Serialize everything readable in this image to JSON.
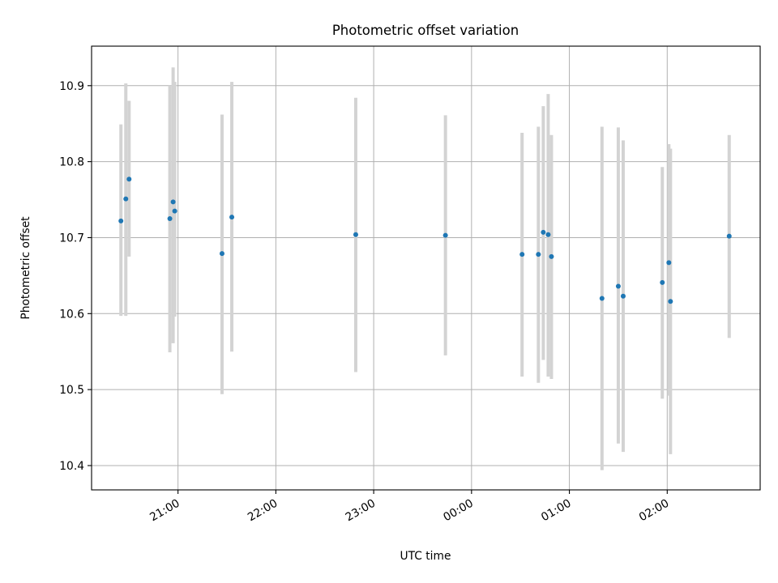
{
  "chart_data": {
    "type": "scatter",
    "title": "Photometric offset variation",
    "xlabel": "UTC time",
    "ylabel": "Photometric offset",
    "xlim": [
      "20:07",
      "02:57"
    ],
    "ylim": [
      10.368,
      10.952
    ],
    "grid": true,
    "x_ticks": [
      "21:00",
      "22:00",
      "23:00",
      "00:00",
      "01:00",
      "02:00"
    ],
    "y_ticks": [
      10.4,
      10.5,
      10.6,
      10.7,
      10.8,
      10.9
    ],
    "marker_color": "#1f77b4",
    "errorbar_color": "#d3d3d3",
    "series": [
      {
        "x": [
          "20:25",
          "20:28",
          "20:30",
          "20:55",
          "20:57",
          "20:58",
          "21:27",
          "21:33",
          "22:49",
          "23:44",
          "00:31",
          "00:41",
          "00:44",
          "00:47",
          "00:49",
          "01:20",
          "01:30",
          "01:33",
          "01:57",
          "02:01",
          "02:02",
          "02:38"
        ],
        "y": [
          10.722,
          10.751,
          10.777,
          10.725,
          10.747,
          10.735,
          10.679,
          10.727,
          10.704,
          10.703,
          10.678,
          10.678,
          10.707,
          10.704,
          10.675,
          10.62,
          10.636,
          10.623,
          10.641,
          10.667,
          10.616,
          10.702
        ],
        "y_low": [
          10.597,
          10.597,
          10.675,
          10.549,
          10.561,
          10.596,
          10.494,
          10.55,
          10.523,
          10.545,
          10.517,
          10.509,
          10.539,
          10.517,
          10.514,
          10.394,
          10.429,
          10.418,
          10.488,
          10.492,
          10.415,
          10.568
        ],
        "y_high": [
          10.849,
          10.903,
          10.88,
          10.9,
          10.924,
          10.905,
          10.862,
          10.905,
          10.884,
          10.861,
          10.838,
          10.846,
          10.873,
          10.889,
          10.835,
          10.846,
          10.845,
          10.828,
          10.793,
          10.823,
          10.817,
          10.835
        ]
      }
    ]
  }
}
